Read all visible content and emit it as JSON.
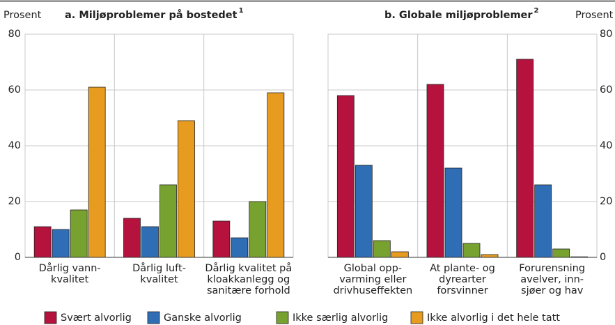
{
  "chart_data": [
    {
      "type": "bar",
      "title": "a. Miljøproblemer på bostedet",
      "title_note": "1",
      "y_label": "Prosent",
      "categories": [
        [
          "Dårlig vann-",
          "kvalitet"
        ],
        [
          "Dårlig luft-",
          "kvalitet"
        ],
        [
          "Dårlig kvalitet på",
          "kloakkanlegg og",
          "sanitære forhold"
        ]
      ],
      "series": [
        {
          "values": [
            11,
            14,
            13
          ]
        },
        {
          "values": [
            10,
            11,
            7
          ]
        },
        {
          "values": [
            17,
            26,
            20
          ]
        },
        {
          "values": [
            61,
            49,
            59
          ]
        }
      ],
      "ylim": [
        0,
        80
      ],
      "yticks": [
        0,
        20,
        40,
        60,
        80
      ],
      "grid": true,
      "ytick_side": "left"
    },
    {
      "type": "bar",
      "title": "b. Globale miljøproblemer",
      "title_note": "2",
      "y_label": "Prosent",
      "categories": [
        [
          "Global opp-",
          "varming eller",
          "drivhuseffekten"
        ],
        [
          "At plante- og",
          "dyrearter",
          "forsvinner"
        ],
        [
          "Forurensning",
          "avelver, inn-",
          "sjøer og hav"
        ]
      ],
      "series": [
        {
          "values": [
            58,
            62,
            71
          ]
        },
        {
          "values": [
            33,
            32,
            26
          ]
        },
        {
          "values": [
            6,
            5,
            3
          ]
        },
        {
          "values": [
            2,
            1,
            0.2
          ]
        }
      ],
      "ylim": [
        0,
        80
      ],
      "yticks": [
        0,
        20,
        40,
        60,
        80
      ],
      "grid": true,
      "ytick_side": "right"
    }
  ],
  "legend": [
    {
      "name": "Svært alvorlig",
      "color": "#b5123e"
    },
    {
      "name": "Ganske alvorlig",
      "color": "#2f6db5"
    },
    {
      "name": "Ikke særlig alvorlig",
      "color": "#78a22f"
    },
    {
      "name": "Ikke alvorlig i det hele tatt",
      "color": "#e89c1f"
    }
  ]
}
